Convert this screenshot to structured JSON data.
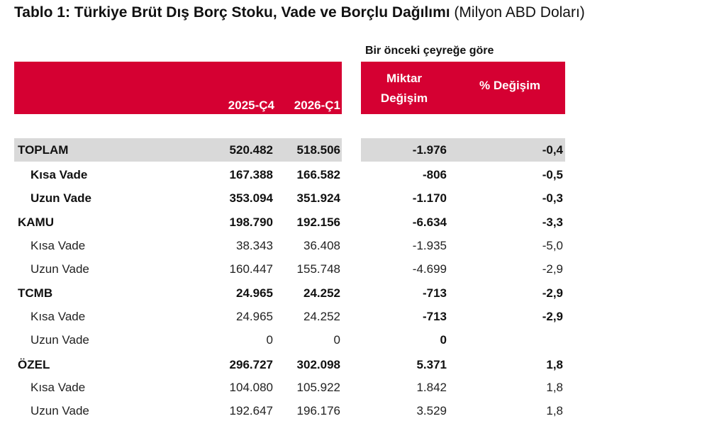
{
  "title": {
    "bold": "Tablo 1: Türkiye Brüt Dış Borç Stoku, Vade ve Borçlu Dağılımı",
    "light": " (Milyon ABD Doları)"
  },
  "group_header": "Bir önceki çeyreğe göre",
  "columns": {
    "c1": "2025-Ç4",
    "c2": "2026-Ç1",
    "c3_line1": "Miktar",
    "c3_line2": "Değişim",
    "c4": "% Değişim"
  },
  "colors": {
    "header_bg": "#d50032",
    "total_row_bg": "#d9d9d9"
  },
  "rows": [
    {
      "label": "TOPLAM",
      "c1": "520.482",
      "c2": "518.506",
      "c3": "-1.976",
      "c4": "-0,4"
    },
    {
      "label": "Kısa Vade",
      "c1": "167.388",
      "c2": "166.582",
      "c3": "-806",
      "c4": "-0,5"
    },
    {
      "label": "Uzun Vade",
      "c1": "353.094",
      "c2": "351.924",
      "c3": "-1.170",
      "c4": "-0,3"
    },
    {
      "label": "KAMU",
      "c1": "198.790",
      "c2": "192.156",
      "c3": "-6.634",
      "c4": "-3,3"
    },
    {
      "label": "Kısa Vade",
      "c1": "38.343",
      "c2": "36.408",
      "c3": "-1.935",
      "c4": "-5,0"
    },
    {
      "label": "Uzun Vade",
      "c1": "160.447",
      "c2": "155.748",
      "c3": "-4.699",
      "c4": "-2,9"
    },
    {
      "label": "TCMB",
      "c1": "24.965",
      "c2": "24.252",
      "c3": "-713",
      "c4": "-2,9"
    },
    {
      "label": "Kısa Vade",
      "c1": "24.965",
      "c2": "24.252",
      "c3": "-713",
      "c4": "-2,9"
    },
    {
      "label": "Uzun Vade",
      "c1": "0",
      "c2": "0",
      "c3": "0",
      "c4": ""
    },
    {
      "label": "ÖZEL",
      "c1": "296.727",
      "c2": "302.098",
      "c3": "5.371",
      "c4": "1,8"
    },
    {
      "label": "Kısa Vade",
      "c1": "104.080",
      "c2": "105.922",
      "c3": "1.842",
      "c4": "1,8"
    },
    {
      "label": "Uzun Vade",
      "c1": "192.647",
      "c2": "196.176",
      "c3": "3.529",
      "c4": "1,8"
    }
  ]
}
